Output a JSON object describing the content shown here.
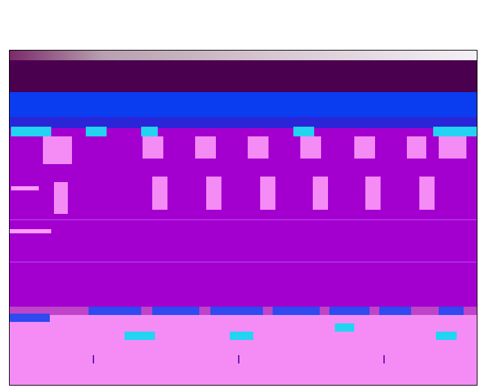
{
  "title": "",
  "subtitle": ""
}
